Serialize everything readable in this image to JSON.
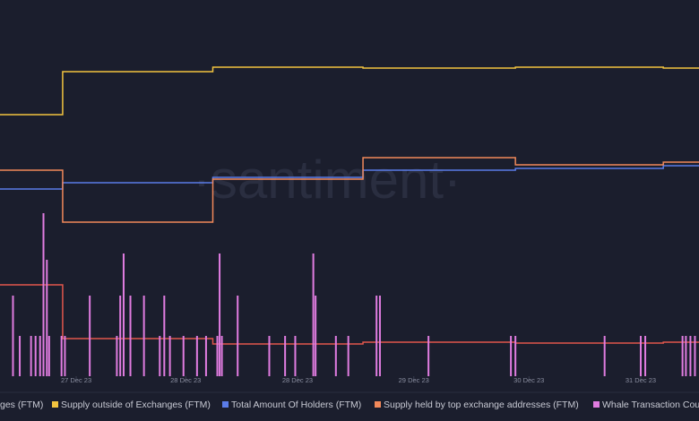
{
  "chart_data": {
    "type": "line",
    "watermark": "·santiment·",
    "xlim": [
      -0.675,
      5.516
    ],
    "ylim": [
      0,
      100
    ],
    "xticks": [
      {
        "value": 0,
        "label": "27 Dec 23"
      },
      {
        "value": 0.97,
        "label": "28 Dec 23"
      },
      {
        "value": 1.96,
        "label": "28 Dec 23"
      },
      {
        "value": 2.99,
        "label": "29 Dec 23"
      },
      {
        "value": 4.01,
        "label": "30 Dec 23"
      },
      {
        "value": 5,
        "label": "31 Dec 23"
      }
    ],
    "series": [
      {
        "name": "ges (FTM)",
        "color": "#e2574c",
        "x": [
          -0.675,
          -0.12,
          -0.12,
          1.21,
          1.21,
          2.54,
          2.54,
          3.89,
          3.89,
          5.2,
          5.2,
          5.516
        ],
        "values": [
          25.5,
          25.5,
          10.5,
          10.5,
          9,
          9,
          9.5,
          9.5,
          9.25,
          9.25,
          9.5,
          9.5
        ]
      },
      {
        "name": "Supply outside of Exchanges (FTM)",
        "color": "#f3c43f",
        "x": [
          -0.675,
          -0.12,
          -0.12,
          1.21,
          1.21,
          2.54,
          2.54,
          3.89,
          3.89,
          5.2,
          5.2,
          5.516
        ],
        "values": [
          73,
          73,
          85,
          85,
          86.25,
          86.25,
          86,
          86,
          86.25,
          86.25,
          86,
          86
        ]
      },
      {
        "name": "Total Amount Of Holders (FTM)",
        "color": "#5b7ce8",
        "x": [
          -0.675,
          -0.12,
          -0.12,
          1.21,
          1.21,
          2.54,
          2.54,
          3.89,
          3.89,
          5.2,
          5.2,
          5.516
        ],
        "values": [
          52.25,
          52.25,
          54,
          54,
          55.5,
          55.5,
          57.5,
          57.5,
          58,
          58,
          58.75,
          58.75
        ]
      },
      {
        "name": "Supply held by top exchange addresses (FTM)",
        "color": "#f2895a",
        "x": [
          -0.675,
          -0.12,
          -0.12,
          1.21,
          1.21,
          2.54,
          2.54,
          3.89,
          3.89,
          5.2,
          5.2,
          5.516
        ],
        "values": [
          57.5,
          57.5,
          43,
          43,
          55,
          55,
          61,
          61,
          59,
          59,
          59.75,
          59.75
        ]
      },
      {
        "name": "Whale Transaction Cou",
        "color": "#e07ce0",
        "bars": true,
        "x": [
          -0.56,
          -0.5,
          -0.4,
          -0.36,
          -0.32,
          -0.29,
          -0.26,
          -0.24,
          -0.13,
          -0.1,
          0.12,
          0.36,
          0.39,
          0.42,
          0.48,
          0.6,
          0.74,
          0.78,
          0.83,
          0.95,
          1.07,
          1.15,
          1.25,
          1.27,
          1.29,
          1.43,
          1.71,
          1.85,
          1.94,
          2.1,
          2.12,
          2.3,
          2.41,
          2.66,
          2.69,
          3.12,
          3.85,
          3.89,
          4.68,
          5,
          5.04,
          5.37,
          5.4,
          5.44,
          5.48
        ],
        "values": [
          22.5,
          11.25,
          11.25,
          11.25,
          11.25,
          45.5,
          32.5,
          11.25,
          11.25,
          11.25,
          22.5,
          11.25,
          22.5,
          34.25,
          22.5,
          22.5,
          11.25,
          22.5,
          11.25,
          11.25,
          11.25,
          11.25,
          11.25,
          34.25,
          11.25,
          22.5,
          11.25,
          11.25,
          11.25,
          34.25,
          22.5,
          11.25,
          11.25,
          22.5,
          22.5,
          11.25,
          11.25,
          11.25,
          11.25,
          11.25,
          11.25,
          11.25,
          11.25,
          11.25,
          11.25
        ]
      }
    ]
  }
}
